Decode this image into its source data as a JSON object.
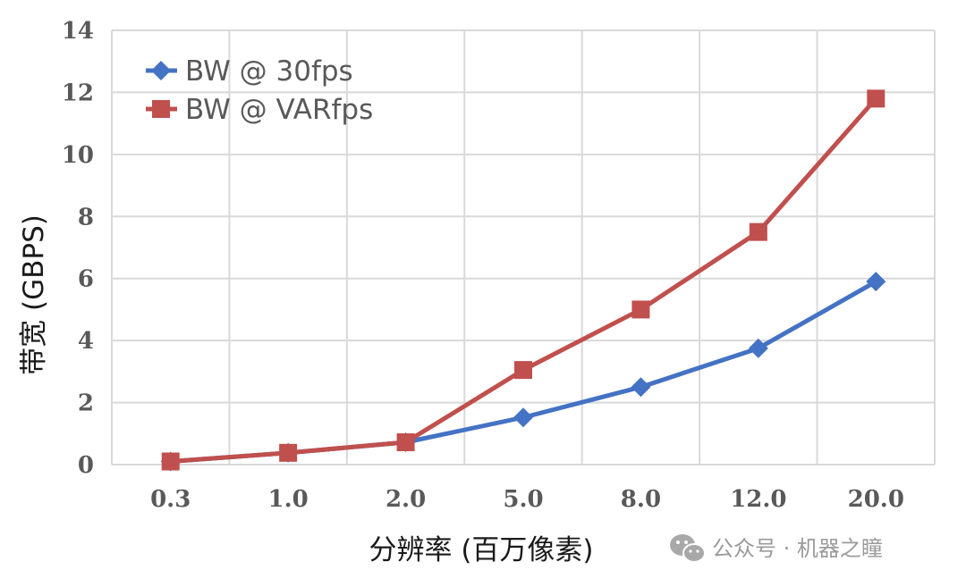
{
  "chart_data": {
    "type": "line",
    "title": "",
    "xlabel": "分辨率 (百万像素)",
    "ylabel": "带宽 (GBPS)",
    "categories": [
      "0.3",
      "1.0",
      "2.0",
      "5.0",
      "8.0",
      "12.0",
      "20.0"
    ],
    "yticks": [
      "0",
      "2",
      "4",
      "6",
      "8",
      "10",
      "12",
      "14"
    ],
    "ylim": [
      0,
      14
    ],
    "grid": true,
    "legend_position": "top-left",
    "series": [
      {
        "name": "BW @ 30fps",
        "marker": "diamond",
        "color": "#4472C4",
        "values": [
          0.1,
          0.38,
          0.72,
          1.52,
          2.5,
          3.75,
          5.9
        ]
      },
      {
        "name": "BW @ VARfps",
        "marker": "square",
        "color": "#C0504D",
        "values": [
          0.1,
          0.38,
          0.72,
          3.05,
          5.0,
          7.5,
          11.8
        ]
      }
    ]
  },
  "watermark": {
    "text": "公众号 · 机器之瞳",
    "icon": "wechat-icon"
  }
}
